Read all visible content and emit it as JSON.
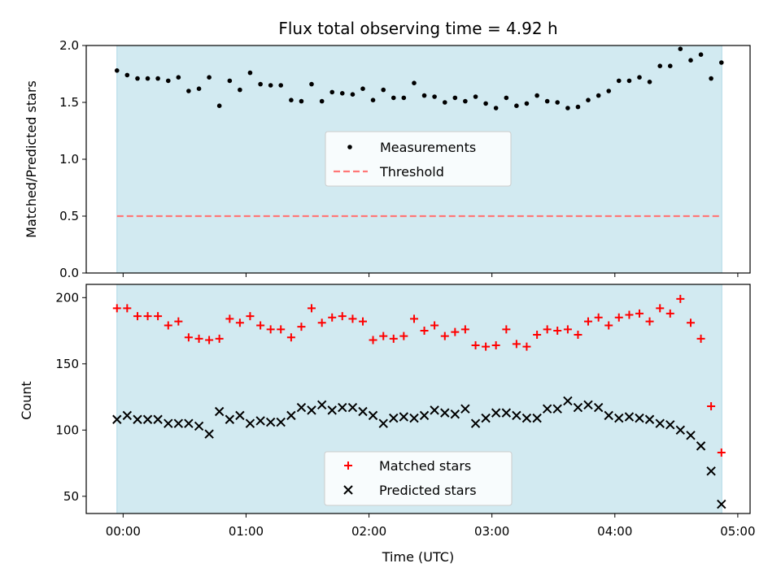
{
  "chart_data": [
    {
      "type": "scatter",
      "title": "Flux total observing time = 4.92 h",
      "ylabel": "Matched/Predicted stars",
      "xlabel": "",
      "ylim": [
        0,
        2.0
      ],
      "yticks": [
        "0.0",
        "0.5",
        "1.0",
        "1.5",
        "2.0"
      ],
      "xlim_hours": [
        -0.3,
        5.1
      ],
      "shaded_span_hours": [
        -0.05,
        4.87
      ],
      "shade_color": "#add8e6",
      "legend_position": "center",
      "series": [
        {
          "name": "Measurements",
          "color": "#000000",
          "marker": "dot",
          "x_hours": [
            -0.05,
            0.033,
            0.117,
            0.2,
            0.283,
            0.367,
            0.45,
            0.533,
            0.617,
            0.7,
            0.783,
            0.867,
            0.95,
            1.033,
            1.117,
            1.2,
            1.283,
            1.367,
            1.45,
            1.533,
            1.617,
            1.7,
            1.783,
            1.867,
            1.95,
            2.033,
            2.117,
            2.2,
            2.283,
            2.367,
            2.45,
            2.533,
            2.617,
            2.7,
            2.783,
            2.867,
            2.95,
            3.033,
            3.117,
            3.2,
            3.283,
            3.367,
            3.45,
            3.533,
            3.617,
            3.7,
            3.783,
            3.867,
            3.95,
            4.033,
            4.117,
            4.2,
            4.283,
            4.367,
            4.45,
            4.533,
            4.617,
            4.7,
            4.783,
            4.867
          ],
          "y": [
            1.78,
            1.74,
            1.71,
            1.71,
            1.71,
            1.69,
            1.72,
            1.6,
            1.62,
            1.72,
            1.47,
            1.69,
            1.61,
            1.76,
            1.66,
            1.65,
            1.65,
            1.52,
            1.51,
            1.66,
            1.51,
            1.59,
            1.58,
            1.57,
            1.62,
            1.52,
            1.61,
            1.54,
            1.54,
            1.67,
            1.56,
            1.55,
            1.5,
            1.54,
            1.51,
            1.55,
            1.49,
            1.45,
            1.54,
            1.47,
            1.49,
            1.56,
            1.51,
            1.5,
            1.45,
            1.46,
            1.52,
            1.56,
            1.6,
            1.69,
            1.69,
            1.72,
            1.68,
            1.82,
            1.82,
            1.97,
            1.87,
            1.92,
            1.71,
            1.85
          ]
        },
        {
          "name": "Threshold",
          "color": "#ff7777",
          "style": "dashed",
          "y_constant": 0.5,
          "x_hours": [
            -0.05,
            4.87
          ]
        }
      ]
    },
    {
      "type": "scatter",
      "title": "",
      "ylabel": "Count",
      "xlabel": "Time (UTC)",
      "ylim": [
        37,
        210
      ],
      "yticks": [
        "50",
        "100",
        "150",
        "200"
      ],
      "xticks": [
        "00:00",
        "01:00",
        "02:00",
        "03:00",
        "04:00",
        "05:00"
      ],
      "xlim_hours": [
        -0.3,
        5.1
      ],
      "shaded_span_hours": [
        -0.05,
        4.87
      ],
      "shade_color": "#add8e6",
      "legend_position": "lower center",
      "series": [
        {
          "name": "Matched stars",
          "color": "#ff0000",
          "marker": "plus",
          "x_hours": [
            -0.05,
            0.033,
            0.117,
            0.2,
            0.283,
            0.367,
            0.45,
            0.533,
            0.617,
            0.7,
            0.783,
            0.867,
            0.95,
            1.033,
            1.117,
            1.2,
            1.283,
            1.367,
            1.45,
            1.533,
            1.617,
            1.7,
            1.783,
            1.867,
            1.95,
            2.033,
            2.117,
            2.2,
            2.283,
            2.367,
            2.45,
            2.533,
            2.617,
            2.7,
            2.783,
            2.867,
            2.95,
            3.033,
            3.117,
            3.2,
            3.283,
            3.367,
            3.45,
            3.533,
            3.617,
            3.7,
            3.783,
            3.867,
            3.95,
            4.033,
            4.117,
            4.2,
            4.283,
            4.367,
            4.45,
            4.533,
            4.617,
            4.7,
            4.783,
            4.867
          ],
          "y": [
            192,
            192,
            186,
            186,
            186,
            179,
            182,
            170,
            169,
            168,
            169,
            184,
            181,
            186,
            179,
            176,
            176,
            170,
            178,
            192,
            181,
            185,
            186,
            184,
            182,
            168,
            171,
            169,
            171,
            184,
            175,
            179,
            171,
            174,
            176,
            164,
            163,
            164,
            176,
            165,
            163,
            172,
            176,
            175,
            176,
            172,
            182,
            185,
            179,
            185,
            187,
            188,
            182,
            192,
            188,
            199,
            181,
            169,
            118,
            83
          ]
        },
        {
          "name": "Predicted stars",
          "color": "#000000",
          "marker": "x",
          "x_hours": [
            -0.05,
            0.033,
            0.117,
            0.2,
            0.283,
            0.367,
            0.45,
            0.533,
            0.617,
            0.7,
            0.783,
            0.867,
            0.95,
            1.033,
            1.117,
            1.2,
            1.283,
            1.367,
            1.45,
            1.533,
            1.617,
            1.7,
            1.783,
            1.867,
            1.95,
            2.033,
            2.117,
            2.2,
            2.283,
            2.367,
            2.45,
            2.533,
            2.617,
            2.7,
            2.783,
            2.867,
            2.95,
            3.033,
            3.117,
            3.2,
            3.283,
            3.367,
            3.45,
            3.533,
            3.617,
            3.7,
            3.783,
            3.867,
            3.95,
            4.033,
            4.117,
            4.2,
            4.283,
            4.367,
            4.45,
            4.533,
            4.617,
            4.7,
            4.783,
            4.867
          ],
          "y": [
            108,
            111,
            108,
            108,
            108,
            105,
            105,
            105,
            103,
            97,
            114,
            108,
            111,
            105,
            107,
            106,
            106,
            111,
            117,
            115,
            119,
            115,
            117,
            117,
            114,
            111,
            105,
            109,
            110,
            109,
            111,
            115,
            113,
            112,
            116,
            105,
            109,
            113,
            113,
            111,
            109,
            109,
            116,
            116,
            122,
            117,
            119,
            117,
            111,
            109,
            110,
            109,
            108,
            105,
            104,
            100,
            96,
            88,
            69,
            44
          ]
        }
      ]
    }
  ]
}
